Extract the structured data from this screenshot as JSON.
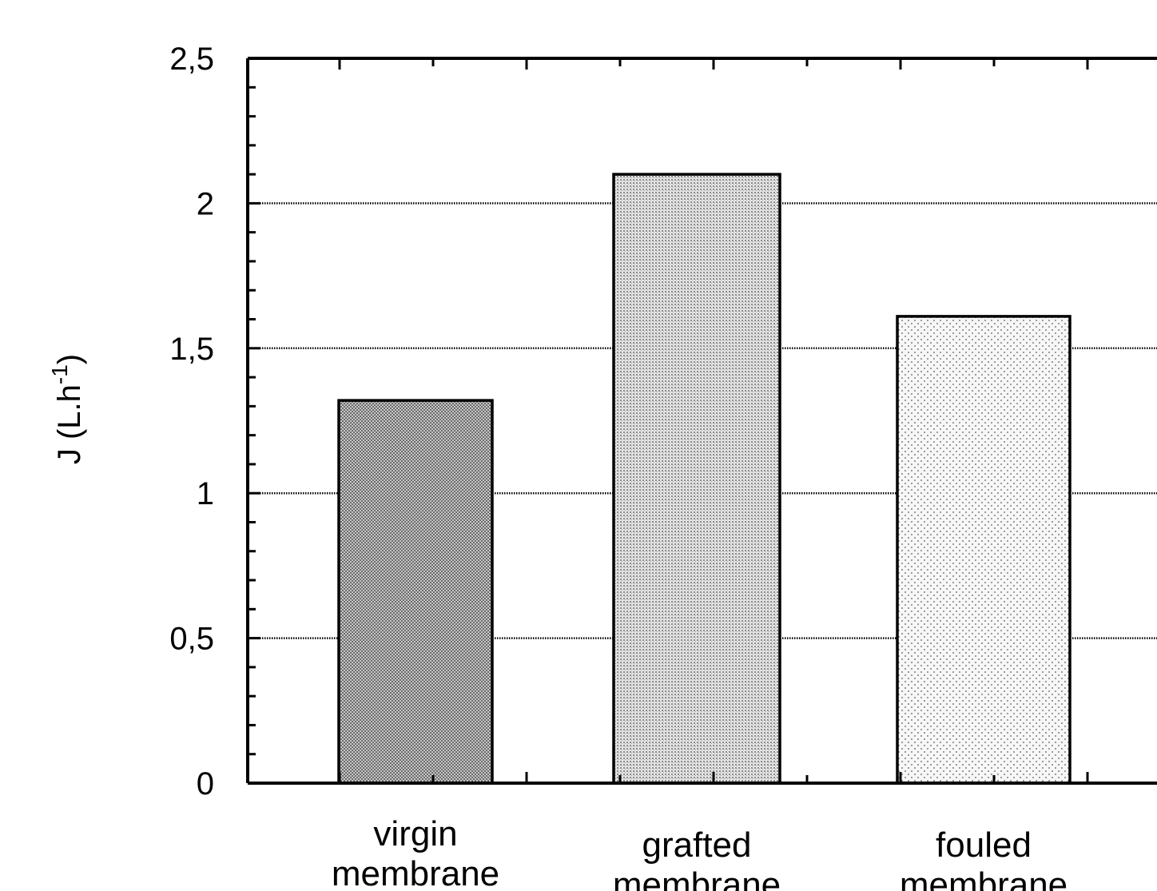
{
  "chart_data": {
    "type": "bar",
    "title": "",
    "xlabel": "",
    "ylabel": {
      "prefix": "J (L.h",
      "superscript": "-1",
      "suffix": ")"
    },
    "categories": [
      [
        "virgin",
        "membrane"
      ],
      [
        "grafted",
        "membrane"
      ],
      [
        "fouled",
        "membrane"
      ]
    ],
    "values": [
      1.32,
      2.1,
      1.61
    ],
    "ylim": [
      0,
      2.5
    ],
    "yticks": [
      0,
      0.5,
      1,
      1.5,
      2,
      2.5
    ],
    "ytick_labels": [
      "0",
      "0,5",
      "1",
      "1,5",
      "2",
      "2,5"
    ],
    "grid": "horizontal dotted at major y ticks",
    "legend": "none",
    "bar_fills": [
      "dense dark stipple",
      "medium stipple",
      "sparse light stipple"
    ]
  }
}
